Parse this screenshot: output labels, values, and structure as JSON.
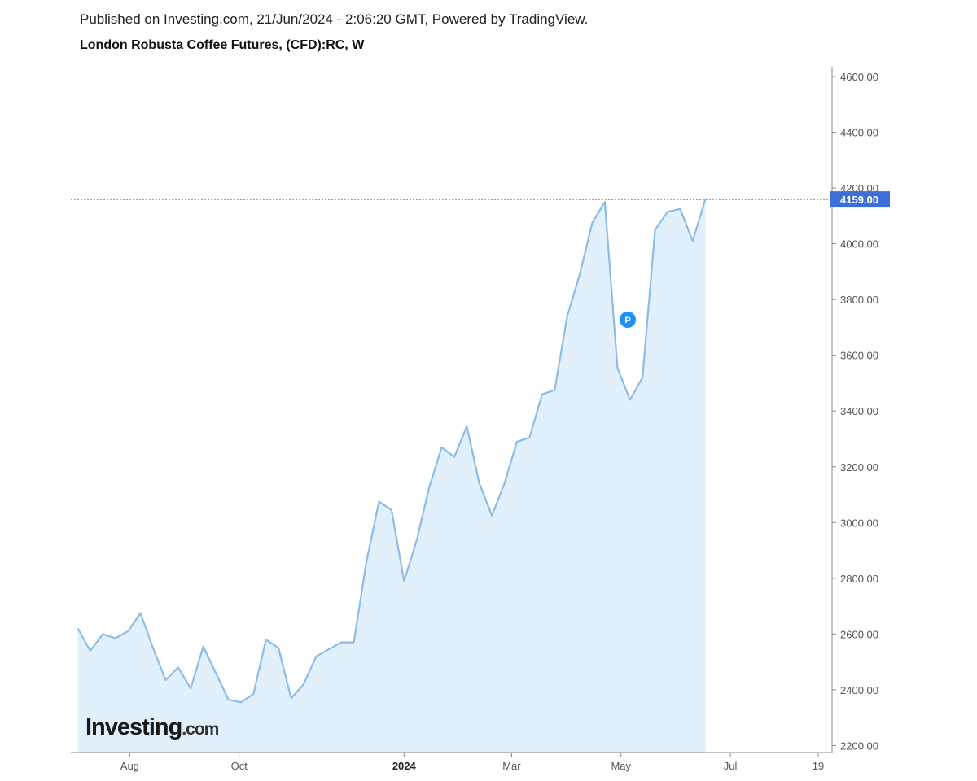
{
  "header": {
    "published": "Published on Investing.com, 21/Jun/2024 - 2:06:20 GMT, Powered by TradingView.",
    "title": "London Robusta Coffee Futures, (CFD):RC, W"
  },
  "logo": {
    "main": "Investing",
    "suffix": ".com"
  },
  "marker": {
    "label": "P",
    "color": "#1e90ff"
  },
  "last_price": {
    "value": 4159.0,
    "label": "4159.00",
    "color": "#3d6fd9"
  },
  "colors": {
    "line": "#8bbde8",
    "area": "#e1f0fa",
    "axis": "#888888"
  },
  "chart_data": {
    "type": "area",
    "title": "London Robusta Coffee Futures, (CFD):RC, W",
    "xlabel": "",
    "ylabel": "",
    "ylim": [
      2175,
      4635
    ],
    "grid": false,
    "y_ticks": [
      2200,
      2400,
      2600,
      2800,
      3000,
      3200,
      3400,
      3600,
      3800,
      4000,
      4200,
      4400,
      4600
    ],
    "y_tick_labels": [
      "2200.00",
      "2400.00",
      "2600.00",
      "2800.00",
      "3000.00",
      "3200.00",
      "3400.00",
      "3600.00",
      "3800.00",
      "4000.00",
      "4200.00",
      "4400.00",
      "4600.00"
    ],
    "x_range": [
      "2023-07-03",
      "2024-08-19"
    ],
    "x_ticks": [
      {
        "date": "2023-08-01",
        "label": "Aug",
        "bold": false
      },
      {
        "date": "2023-10-01",
        "label": "Oct",
        "bold": false
      },
      {
        "date": "2024-01-01",
        "label": "2024",
        "bold": true
      },
      {
        "date": "2024-03-01",
        "label": "Mar",
        "bold": false
      },
      {
        "date": "2024-05-01",
        "label": "May",
        "bold": false
      },
      {
        "date": "2024-07-01",
        "label": "Jul",
        "bold": false
      },
      {
        "date": "2024-08-19",
        "label": "19",
        "bold": false
      }
    ],
    "series": [
      {
        "x": [
          "2023-07-03",
          "2023-07-10",
          "2023-07-17",
          "2023-07-24",
          "2023-07-31",
          "2023-08-07",
          "2023-08-14",
          "2023-08-21",
          "2023-08-28",
          "2023-09-04",
          "2023-09-11",
          "2023-09-18",
          "2023-09-25",
          "2023-10-02",
          "2023-10-09",
          "2023-10-16",
          "2023-10-23",
          "2023-10-30",
          "2023-11-06",
          "2023-11-13",
          "2023-11-20",
          "2023-11-27",
          "2023-12-04",
          "2023-12-11",
          "2023-12-18",
          "2023-12-25",
          "2024-01-01",
          "2024-01-08",
          "2024-01-15",
          "2024-01-22",
          "2024-01-29",
          "2024-02-05",
          "2024-02-12",
          "2024-02-19",
          "2024-02-26",
          "2024-03-04",
          "2024-03-11",
          "2024-03-18",
          "2024-03-25",
          "2024-04-01",
          "2024-04-08",
          "2024-04-15",
          "2024-04-22",
          "2024-04-29",
          "2024-05-06",
          "2024-05-13",
          "2024-05-20",
          "2024-05-27",
          "2024-06-03",
          "2024-06-10",
          "2024-06-17"
        ],
        "values": [
          2620,
          2540,
          2600,
          2585,
          2610,
          2675,
          2550,
          2435,
          2480,
          2405,
          2555,
          2460,
          2365,
          2355,
          2385,
          2580,
          2550,
          2370,
          2420,
          2520,
          2545,
          2570,
          2570,
          2860,
          3075,
          3045,
          2790,
          2935,
          3125,
          3270,
          3235,
          3345,
          3140,
          3025,
          3140,
          3290,
          3305,
          3460,
          3475,
          3740,
          3890,
          4075,
          4150,
          3555,
          3440,
          3520,
          4050,
          4115,
          4125,
          4010,
          4159
        ]
      }
    ],
    "annotations": [
      "P"
    ]
  }
}
